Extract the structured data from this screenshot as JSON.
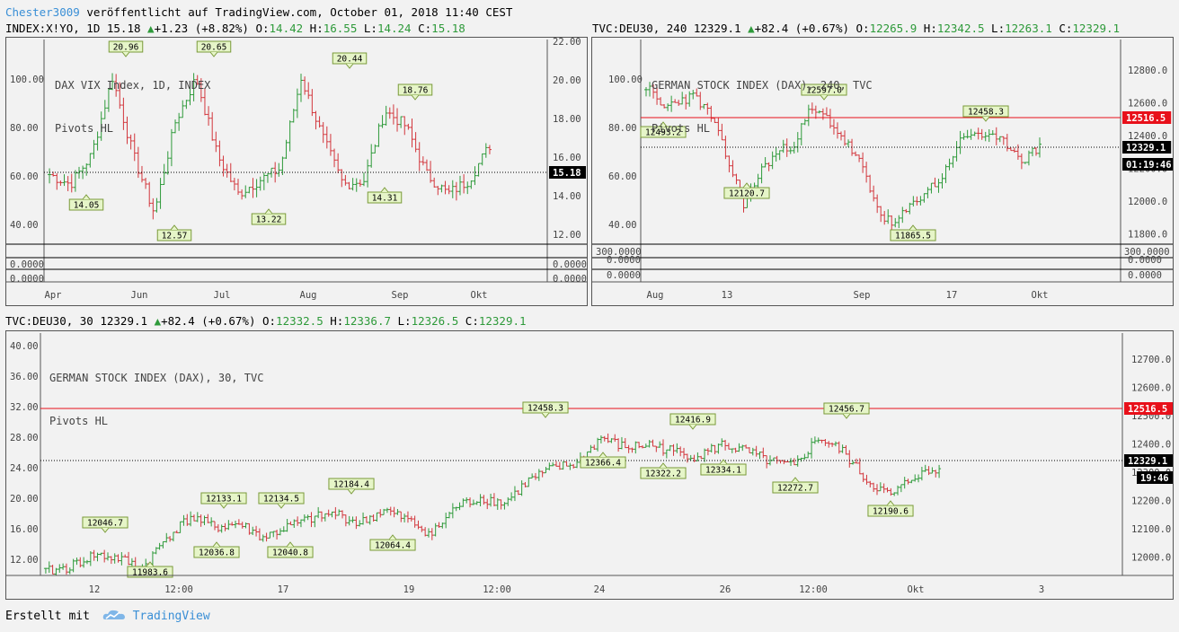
{
  "header": {
    "author": "Chester3009",
    "published_text": "veröffentlicht auf TradingView.com, October 01, 2018 11:40 CEST"
  },
  "colors": {
    "up": "#2e9a3a",
    "down": "#d2363c",
    "resistance": "#e8101a",
    "accent": "#3a8fd6"
  },
  "charts": [
    {
      "id": "vix",
      "symbol": "INDEX:X!YO, 1D 15.18",
      "change": "+1.23 (+8.82%)",
      "ohlc": {
        "O": "14.42",
        "H": "16.55",
        "L": "14.24",
        "C": "15.18"
      },
      "legend": "DAX VIX Index, 1D, INDEX",
      "indicator": "Pivots HL",
      "left_ticks": [
        "100.00",
        "80.00",
        "60.00",
        "40.00"
      ],
      "right_ticks": [
        "22.00",
        "20.00",
        "18.00",
        "16.00",
        "14.00",
        "12.00"
      ],
      "last_price": "15.18",
      "pane_ticks": [
        "0.0000",
        "0.0000"
      ],
      "x_ticks": [
        "Apr",
        "Jun",
        "Jul",
        "Aug",
        "Sep",
        "Okt"
      ],
      "pivots_high": [
        "20.96",
        "20.65",
        "20.44",
        "18.76"
      ],
      "pivots_low": [
        "14.05",
        "12.57",
        "13.22",
        "14.31"
      ]
    },
    {
      "id": "dax240",
      "symbol": "TVC:DEU30, 240 12329.1",
      "change": "+82.4 (+0.67%)",
      "ohlc": {
        "O": "12265.9",
        "H": "12342.5",
        "L": "12263.1",
        "C": "12329.1"
      },
      "legend": "GERMAN STOCK INDEX (DAX), 240, TVC",
      "indicator": "Pivots HL",
      "left_ticks": [
        "100.00",
        "80.00",
        "60.00",
        "40.00"
      ],
      "right_ticks": [
        "12800.0",
        "12600.0",
        "12400.0",
        "12200.0",
        "12000.0",
        "11800.0"
      ],
      "resistance_price": "12516.5",
      "last_price": "12329.1",
      "countdown": "01:19:46",
      "pane_ticks": [
        "300.0000",
        "0.0000",
        "0.0000"
      ],
      "x_ticks": [
        "Aug",
        "13",
        "Sep",
        "17",
        "Okt"
      ],
      "pivots_high": [
        "12597.0",
        "12458.3"
      ],
      "pivots_low": [
        "12493.2",
        "12120.7",
        "11865.5"
      ]
    },
    {
      "id": "dax30",
      "symbol": "TVC:DEU30, 30 12329.1",
      "change": "+82.4 (+0.67%)",
      "ohlc": {
        "O": "12332.5",
        "H": "12336.7",
        "L": "12326.5",
        "C": "12329.1"
      },
      "legend": "GERMAN STOCK INDEX (DAX), 30, TVC",
      "indicator": "Pivots HL",
      "left_ticks": [
        "40.00",
        "36.00",
        "32.00",
        "28.00",
        "24.00",
        "20.00",
        "16.00",
        "12.00"
      ],
      "right_ticks": [
        "12700.0",
        "12600.0",
        "12500.0",
        "12400.0",
        "12300.0",
        "12200.0",
        "12100.0",
        "12000.0"
      ],
      "resistance_price": "12516.5",
      "last_price": "12329.1",
      "countdown": "19:46",
      "x_ticks": [
        "12",
        "12:00",
        "17",
        "19",
        "12:00",
        "24",
        "26",
        "12:00",
        "Okt",
        "3"
      ],
      "pivots_high": [
        "12046.7",
        "12133.1",
        "12134.5",
        "12184.4",
        "12458.3",
        "12416.9",
        "12456.7"
      ],
      "pivots_low": [
        "11983.6",
        "12036.8",
        "12040.8",
        "12064.4",
        "12366.4",
        "12322.2",
        "12334.1",
        "12272.7",
        "12190.6"
      ]
    }
  ],
  "footer": {
    "created_with": "Erstellt mit",
    "brand": "TradingView"
  }
}
